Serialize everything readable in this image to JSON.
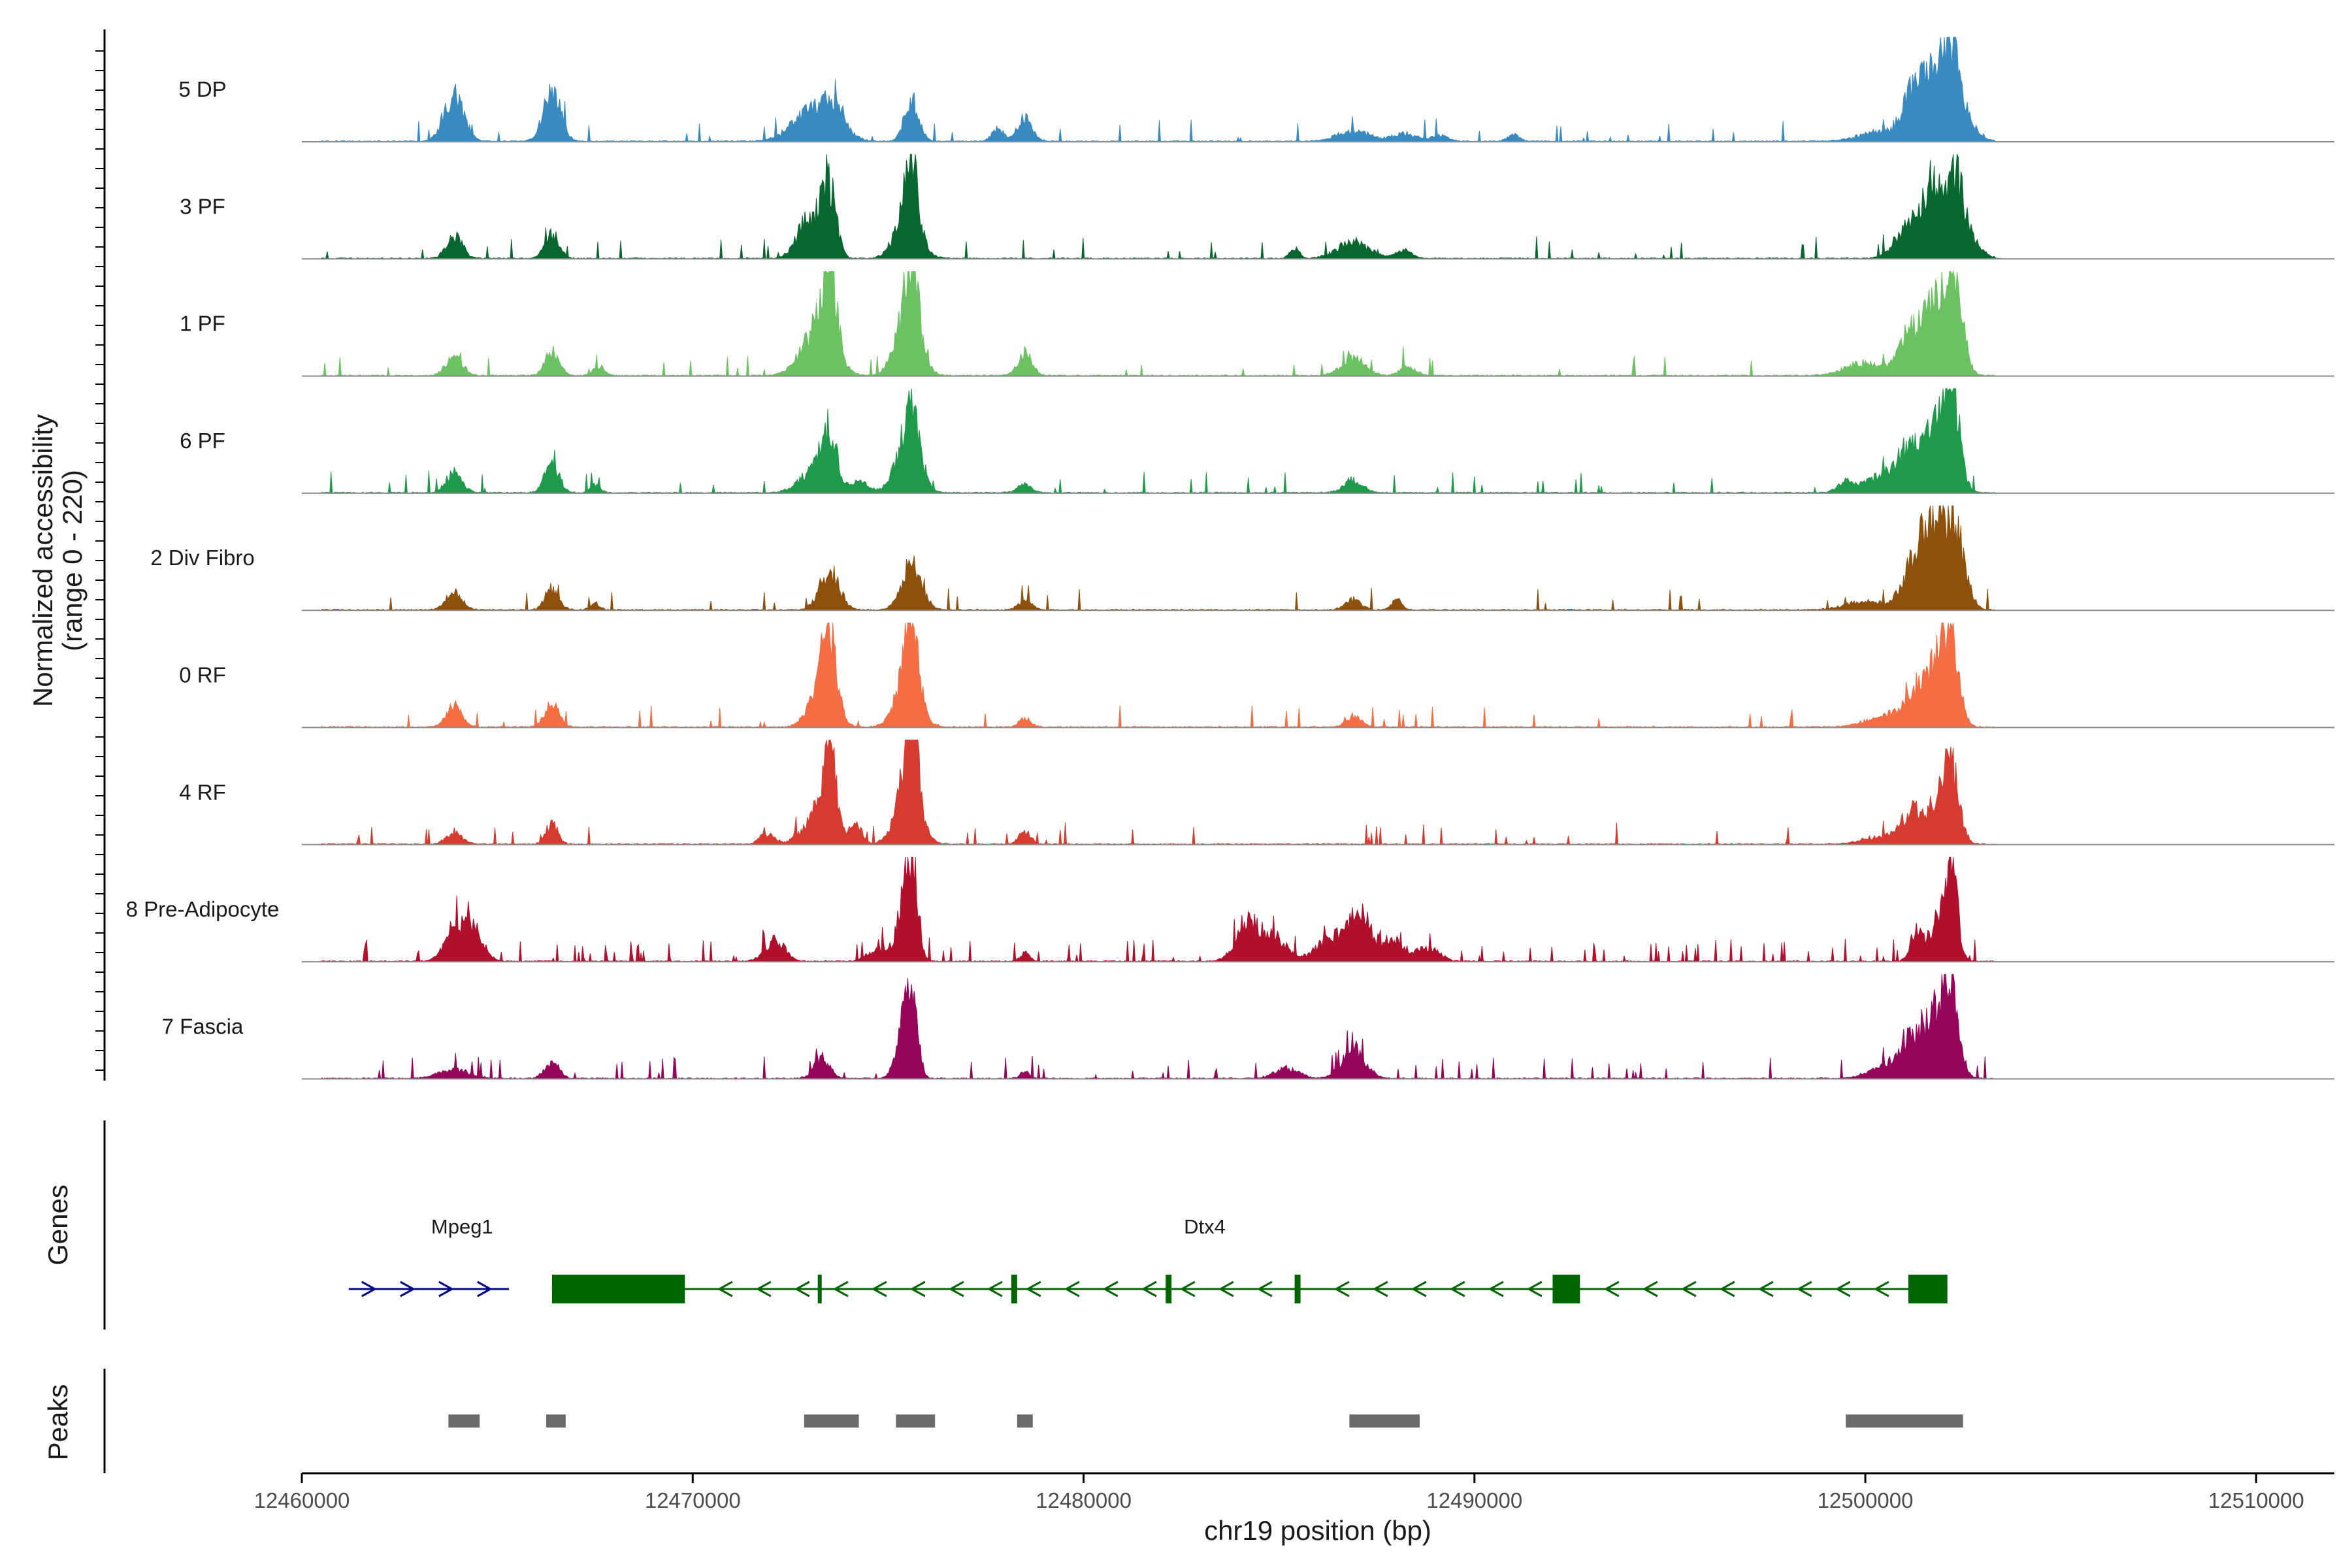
{
  "chart_data": {
    "type": "coverage",
    "region": {
      "chromosome": "chr19",
      "start": 12460000,
      "end": 12512000
    },
    "coverage_panel": {
      "ylabel_line1": "Normalized accessibility",
      "ylabel_line2": "(range 0 - 220)",
      "ylim": [
        0,
        220
      ]
    },
    "tracks": [
      {
        "name": "5 DP",
        "color": "#3a8ac2",
        "noise": 0.03,
        "peaks": [
          [
            12463900,
            250,
            110
          ],
          [
            12466400,
            220,
            120
          ],
          [
            12473100,
            500,
            80
          ],
          [
            12473600,
            300,
            40
          ],
          [
            12475600,
            180,
            100
          ],
          [
            12477800,
            150,
            30
          ],
          [
            12478500,
            180,
            55
          ],
          [
            12486900,
            400,
            25
          ],
          [
            12488200,
            300,
            18
          ],
          [
            12489100,
            200,
            15
          ],
          [
            12491000,
            150,
            15
          ],
          [
            12500500,
            600,
            25
          ],
          [
            12501200,
            250,
            80
          ],
          [
            12501800,
            350,
            170
          ],
          [
            12502200,
            200,
            140
          ],
          [
            12502500,
            300,
            50
          ]
        ]
      },
      {
        "name": "3 PF",
        "color": "#08662f",
        "noise": 0.03,
        "peaks": [
          [
            12463900,
            200,
            55
          ],
          [
            12466400,
            180,
            60
          ],
          [
            12473000,
            300,
            100
          ],
          [
            12473500,
            180,
            155
          ],
          [
            12475500,
            300,
            115
          ],
          [
            12475600,
            150,
            150
          ],
          [
            12486900,
            400,
            40
          ],
          [
            12485400,
            120,
            25
          ],
          [
            12488200,
            200,
            20
          ],
          [
            12501000,
            300,
            60
          ],
          [
            12501700,
            300,
            175
          ],
          [
            12502300,
            200,
            150
          ],
          [
            12502600,
            300,
            50
          ]
        ]
      },
      {
        "name": "1 PF",
        "color": "#6cc263",
        "noise": 0.03,
        "peaks": [
          [
            12463900,
            200,
            50
          ],
          [
            12466400,
            180,
            55
          ],
          [
            12467600,
            150,
            20
          ],
          [
            12473200,
            400,
            110
          ],
          [
            12473500,
            180,
            200
          ],
          [
            12475500,
            300,
            140
          ],
          [
            12475600,
            150,
            175
          ],
          [
            12478500,
            180,
            55
          ],
          [
            12486900,
            300,
            40
          ],
          [
            12488300,
            200,
            20
          ],
          [
            12500000,
            500,
            30
          ],
          [
            12501100,
            250,
            80
          ],
          [
            12501800,
            350,
            170
          ],
          [
            12502300,
            200,
            175
          ]
        ]
      },
      {
        "name": "6 PF",
        "color": "#1f9a4b",
        "noise": 0.04,
        "peaks": [
          [
            12463900,
            200,
            50
          ],
          [
            12466400,
            180,
            70
          ],
          [
            12467500,
            120,
            20
          ],
          [
            12473200,
            400,
            60
          ],
          [
            12473500,
            180,
            110
          ],
          [
            12474300,
            200,
            25
          ],
          [
            12475500,
            300,
            120
          ],
          [
            12475600,
            150,
            140
          ],
          [
            12478500,
            180,
            20
          ],
          [
            12486900,
            250,
            30
          ],
          [
            12499500,
            200,
            25
          ],
          [
            12500500,
            500,
            40
          ],
          [
            12501200,
            300,
            100
          ],
          [
            12501900,
            300,
            150
          ],
          [
            12502200,
            200,
            200
          ]
        ]
      },
      {
        "name": "2 Div Fibro",
        "color": "#8e510c",
        "noise": 0.02,
        "peaks": [
          [
            12463900,
            200,
            45
          ],
          [
            12466400,
            180,
            50
          ],
          [
            12467500,
            120,
            15
          ],
          [
            12473500,
            250,
            90
          ],
          [
            12475600,
            250,
            115
          ],
          [
            12478500,
            180,
            20
          ],
          [
            12486900,
            200,
            25
          ],
          [
            12488000,
            120,
            25
          ],
          [
            12500000,
            500,
            20
          ],
          [
            12501200,
            300,
            80
          ],
          [
            12501700,
            300,
            185
          ],
          [
            12502300,
            250,
            175
          ]
        ]
      },
      {
        "name": "0 RF",
        "color": "#f46d43",
        "noise": 0.03,
        "peaks": [
          [
            12463900,
            200,
            50
          ],
          [
            12466400,
            180,
            55
          ],
          [
            12473300,
            300,
            100
          ],
          [
            12473500,
            180,
            165
          ],
          [
            12475500,
            300,
            120
          ],
          [
            12475600,
            150,
            195
          ],
          [
            12478500,
            150,
            20
          ],
          [
            12486900,
            200,
            25
          ],
          [
            12500500,
            500,
            25
          ],
          [
            12501200,
            300,
            60
          ],
          [
            12501800,
            300,
            140
          ],
          [
            12502200,
            200,
            160
          ]
        ]
      },
      {
        "name": "4 RF",
        "color": "#d63b2f",
        "noise": 0.03,
        "peaks": [
          [
            12463900,
            200,
            30
          ],
          [
            12466400,
            150,
            50
          ],
          [
            12471900,
            180,
            25
          ],
          [
            12473300,
            400,
            80
          ],
          [
            12473500,
            150,
            180
          ],
          [
            12474200,
            150,
            35
          ],
          [
            12475500,
            300,
            130
          ],
          [
            12475600,
            150,
            215
          ],
          [
            12478500,
            150,
            30
          ],
          [
            12500500,
            500,
            20
          ],
          [
            12501200,
            250,
            70
          ],
          [
            12501900,
            300,
            100
          ],
          [
            12502200,
            200,
            140
          ]
        ]
      },
      {
        "name": "8 Pre-Adipocyte",
        "color": "#b0102c",
        "noise": 0.08,
        "peaks": [
          [
            12463900,
            250,
            80
          ],
          [
            12464400,
            250,
            70
          ],
          [
            12472100,
            250,
            50
          ],
          [
            12474700,
            250,
            25
          ],
          [
            12475400,
            200,
            110
          ],
          [
            12475600,
            150,
            195
          ],
          [
            12478500,
            120,
            20
          ],
          [
            12484200,
            300,
            90
          ],
          [
            12484900,
            300,
            55
          ],
          [
            12486400,
            400,
            60
          ],
          [
            12487100,
            250,
            110
          ],
          [
            12487900,
            300,
            50
          ],
          [
            12488800,
            300,
            30
          ],
          [
            12501300,
            150,
            70
          ],
          [
            12501900,
            250,
            100
          ],
          [
            12502200,
            150,
            215
          ]
        ]
      },
      {
        "name": "7 Fascia",
        "color": "#96035a",
        "noise": 0.05,
        "peaks": [
          [
            12463900,
            400,
            20
          ],
          [
            12466400,
            180,
            40
          ],
          [
            12473300,
            200,
            50
          ],
          [
            12475400,
            200,
            100
          ],
          [
            12475600,
            150,
            165
          ],
          [
            12478500,
            120,
            15
          ],
          [
            12485200,
            300,
            25
          ],
          [
            12486900,
            300,
            70
          ],
          [
            12500500,
            400,
            30
          ],
          [
            12501200,
            300,
            80
          ],
          [
            12501800,
            300,
            140
          ],
          [
            12502200,
            200,
            170
          ]
        ]
      }
    ],
    "genes": [
      {
        "name": "Mpeg1",
        "strand": "+",
        "color": "#00008b",
        "start": 12461200,
        "end": 12465300,
        "exons": [],
        "label_pos": 12464100
      },
      {
        "name": "Dtx4",
        "strand": "-",
        "color": "#006400",
        "start": 12466400,
        "end": 12502100,
        "exons": [
          [
            12466400,
            12469800
          ],
          [
            12473200,
            12473300
          ],
          [
            12478150,
            12478300
          ],
          [
            12482100,
            12482250
          ],
          [
            12485400,
            12485550
          ],
          [
            12492000,
            12492700
          ],
          [
            12501100,
            12502100
          ]
        ],
        "label_pos": 12483100
      }
    ],
    "panel_titles": {
      "genes": "Genes",
      "peaks": "Peaks"
    },
    "peaks": [
      [
        12463750,
        12464550
      ],
      [
        12466250,
        12466750
      ],
      [
        12472850,
        12474250
      ],
      [
        12475200,
        12476200
      ],
      [
        12478300,
        12478700
      ],
      [
        12486800,
        12488600
      ],
      [
        12499500,
        12502500
      ]
    ],
    "peak_color": "#6b6b6b",
    "xaxis": {
      "label": "chr19 position (bp)",
      "ticks": [
        12460000,
        12470000,
        12480000,
        12490000,
        12500000,
        12510000
      ],
      "tick_labels": [
        "12460000",
        "12470000",
        "12480000",
        "12490000",
        "12500000",
        "12510000"
      ]
    }
  }
}
